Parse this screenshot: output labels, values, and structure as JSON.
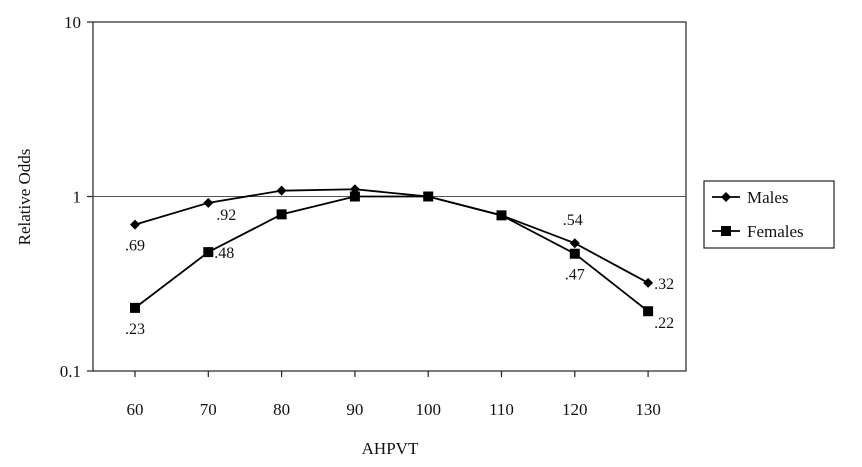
{
  "chart_data": {
    "type": "line",
    "title": "",
    "xlabel": "AHPVT",
    "ylabel": "Relative Odds",
    "y_scale": "log",
    "ylim": [
      0.1,
      10
    ],
    "y_ticks": [
      {
        "value": 0.1,
        "label": "0.1"
      },
      {
        "value": 1,
        "label": "1"
      },
      {
        "value": 10,
        "label": "10"
      }
    ],
    "x": [
      60,
      70,
      80,
      90,
      100,
      110,
      120,
      130
    ],
    "x_tick_labels": [
      "60",
      "70",
      "80",
      "90",
      "100",
      "110",
      "120",
      "130"
    ],
    "reference_line": 1,
    "grid": false,
    "legend_position": "right",
    "series": [
      {
        "name": "Males",
        "marker": "diamond",
        "values": [
          0.69,
          0.92,
          1.08,
          1.1,
          1.0,
          0.78,
          0.54,
          0.32
        ],
        "data_labels": [
          ".69",
          ".92",
          null,
          null,
          null,
          null,
          ".54",
          ".32"
        ]
      },
      {
        "name": "Females",
        "marker": "square",
        "values": [
          0.23,
          0.48,
          0.79,
          1.0,
          1.0,
          0.78,
          0.47,
          0.22
        ],
        "data_labels": [
          ".23",
          ".48",
          null,
          null,
          null,
          null,
          ".47",
          ".22"
        ]
      }
    ]
  }
}
